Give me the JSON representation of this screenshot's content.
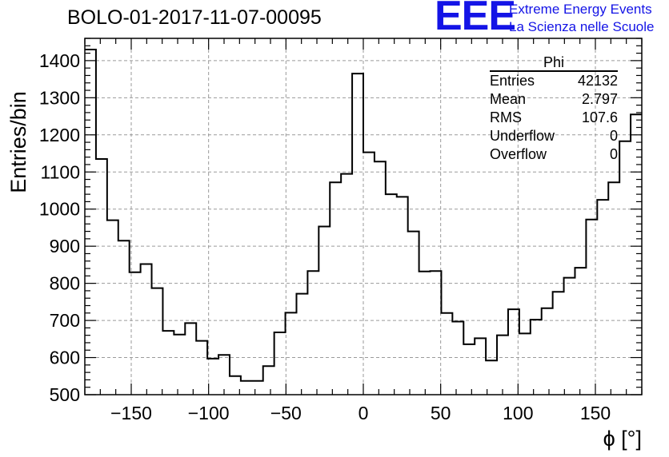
{
  "header": {
    "title": "BOLO-01-2017-11-07-00095",
    "logo_text": "EEE",
    "org_line1": "Extreme Energy Events",
    "org_line2": "La Scienza nelle Scuole"
  },
  "stats_box": {
    "name": "Phi",
    "rows": [
      {
        "label": "Entries",
        "value": "42132"
      },
      {
        "label": "Mean",
        "value": "2.797"
      },
      {
        "label": "RMS",
        "value": "107.6"
      },
      {
        "label": "Underflow",
        "value": "0"
      },
      {
        "label": "Overflow",
        "value": "0"
      }
    ]
  },
  "chart_data": {
    "type": "histogram",
    "title": "BOLO-01-2017-11-07-00095",
    "xlabel": "ϕ [°]",
    "ylabel": "Entries/bin",
    "xlim": [
      -180,
      180
    ],
    "ylim": [
      500,
      1460
    ],
    "bin_width": 7.2,
    "x_ticks": [
      -150,
      -100,
      -50,
      0,
      50,
      100,
      150
    ],
    "y_ticks": [
      500,
      600,
      700,
      800,
      900,
      1000,
      1100,
      1200,
      1300,
      1400
    ],
    "grid": true,
    "line_color": "#000000",
    "values": [
      1430,
      1135,
      970,
      915,
      830,
      852,
      787,
      672,
      662,
      693,
      645,
      597,
      607,
      550,
      537,
      537,
      577,
      668,
      721,
      772,
      833,
      953,
      1072,
      1095,
      1365,
      1153,
      1128,
      1040,
      1033,
      940,
      832,
      833,
      720,
      697,
      636,
      652,
      592,
      660,
      730,
      665,
      702,
      733,
      777,
      815,
      842,
      972,
      1025,
      1072,
      1183,
      1255
    ]
  }
}
